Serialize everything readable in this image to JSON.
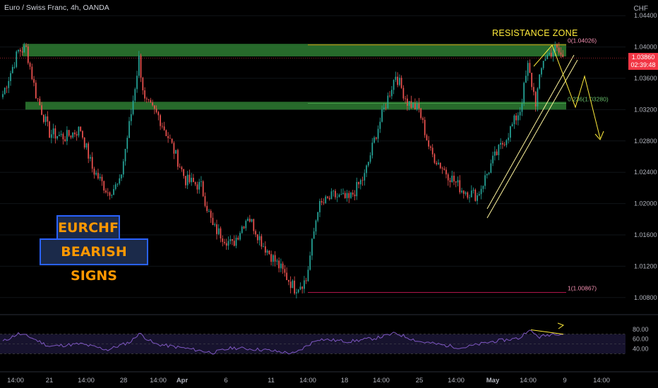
{
  "header": {
    "title": "Euro / Swiss Franc, 4h, OANDA",
    "currency": "CHF"
  },
  "annotations": {
    "badge_line1": "EURCHF",
    "badge_line2": "BEARISH SIGNS",
    "resistance_label": "RESISTANCE ZONE",
    "fib_0": "0(1.04026)",
    "fib_236": "0.236(1.03280)",
    "fib_1": "1(1.00867)"
  },
  "current_price": {
    "price": "1.03860",
    "countdown": "02:39:48"
  },
  "colors": {
    "background": "#000000",
    "bull": "#26a69a",
    "bear": "#ef5350",
    "zone": "#2e7d32",
    "accent": "#ffeb3b",
    "rsi": "#7e57c2",
    "badge_border": "#2962ff",
    "badge_text": "#ff9800"
  },
  "chart_data": {
    "type": "candlestick",
    "symbol": "EURCHF",
    "timeframe": "4h",
    "ylim": [
      1.006,
      1.046
    ],
    "price_ticks": [
      "1.04400",
      "1.04000",
      "1.03600",
      "1.03200",
      "1.02800",
      "1.02400",
      "1.02000",
      "1.01600",
      "1.01200",
      "1.00800"
    ],
    "x_ticks": [
      "14:00",
      "21",
      "14:00",
      "28",
      "14:00",
      "Apr",
      "6",
      "11",
      "14:00",
      "18",
      "14:00",
      "25",
      "14:00",
      "May",
      "14:00",
      "9",
      "14:00"
    ],
    "rsi_ticks": [
      "80.00",
      "60.00",
      "40.00"
    ],
    "zones": [
      {
        "from": 1.0388,
        "to": 1.0404
      },
      {
        "from": 1.032,
        "to": 1.033
      }
    ],
    "path": [
      {
        "i": 0,
        "p": 1.034
      },
      {
        "i": 8,
        "p": 1.0395
      },
      {
        "i": 12,
        "p": 1.0398
      },
      {
        "i": 17,
        "p": 1.034
      },
      {
        "i": 24,
        "p": 1.029
      },
      {
        "i": 32,
        "p": 1.0285
      },
      {
        "i": 40,
        "p": 1.0295
      },
      {
        "i": 46,
        "p": 1.0245
      },
      {
        "i": 54,
        "p": 1.0215
      },
      {
        "i": 60,
        "p": 1.0225
      },
      {
        "i": 66,
        "p": 1.0315
      },
      {
        "i": 70,
        "p": 1.0385
      },
      {
        "i": 73,
        "p": 1.033
      },
      {
        "i": 80,
        "p": 1.0312
      },
      {
        "i": 86,
        "p": 1.028
      },
      {
        "i": 94,
        "p": 1.023
      },
      {
        "i": 102,
        "p": 1.0222
      },
      {
        "i": 108,
        "p": 1.017
      },
      {
        "i": 118,
        "p": 1.0147
      },
      {
        "i": 126,
        "p": 1.0185
      },
      {
        "i": 134,
        "p": 1.0147
      },
      {
        "i": 142,
        "p": 1.012
      },
      {
        "i": 150,
        "p": 1.0092
      },
      {
        "i": 156,
        "p": 1.0102
      },
      {
        "i": 162,
        "p": 1.0195
      },
      {
        "i": 170,
        "p": 1.021
      },
      {
        "i": 178,
        "p": 1.0205
      },
      {
        "i": 186,
        "p": 1.0235
      },
      {
        "i": 192,
        "p": 1.029
      },
      {
        "i": 198,
        "p": 1.0335
      },
      {
        "i": 202,
        "p": 1.0365
      },
      {
        "i": 208,
        "p": 1.033
      },
      {
        "i": 214,
        "p": 1.032
      },
      {
        "i": 220,
        "p": 1.0265
      },
      {
        "i": 228,
        "p": 1.024
      },
      {
        "i": 236,
        "p": 1.0218
      },
      {
        "i": 244,
        "p": 1.021
      },
      {
        "i": 252,
        "p": 1.0255
      },
      {
        "i": 260,
        "p": 1.029
      },
      {
        "i": 266,
        "p": 1.032
      },
      {
        "i": 270,
        "p": 1.0375
      },
      {
        "i": 274,
        "p": 1.033
      },
      {
        "i": 278,
        "p": 1.0385
      },
      {
        "i": 284,
        "p": 1.0398
      },
      {
        "i": 288,
        "p": 1.0387
      }
    ],
    "rsi_series": [
      {
        "i": 0,
        "v": 55
      },
      {
        "i": 8,
        "v": 71
      },
      {
        "i": 14,
        "v": 64
      },
      {
        "i": 24,
        "v": 45
      },
      {
        "i": 40,
        "v": 50
      },
      {
        "i": 54,
        "v": 38
      },
      {
        "i": 66,
        "v": 55
      },
      {
        "i": 70,
        "v": 72
      },
      {
        "i": 78,
        "v": 50
      },
      {
        "i": 94,
        "v": 41
      },
      {
        "i": 108,
        "v": 32
      },
      {
        "i": 118,
        "v": 42
      },
      {
        "i": 134,
        "v": 38
      },
      {
        "i": 150,
        "v": 30
      },
      {
        "i": 162,
        "v": 60
      },
      {
        "i": 178,
        "v": 55
      },
      {
        "i": 192,
        "v": 62
      },
      {
        "i": 202,
        "v": 72
      },
      {
        "i": 214,
        "v": 55
      },
      {
        "i": 236,
        "v": 42
      },
      {
        "i": 252,
        "v": 55
      },
      {
        "i": 266,
        "v": 62
      },
      {
        "i": 270,
        "v": 79
      },
      {
        "i": 276,
        "v": 64
      },
      {
        "i": 284,
        "v": 72
      },
      {
        "i": 288,
        "v": 70
      }
    ]
  }
}
